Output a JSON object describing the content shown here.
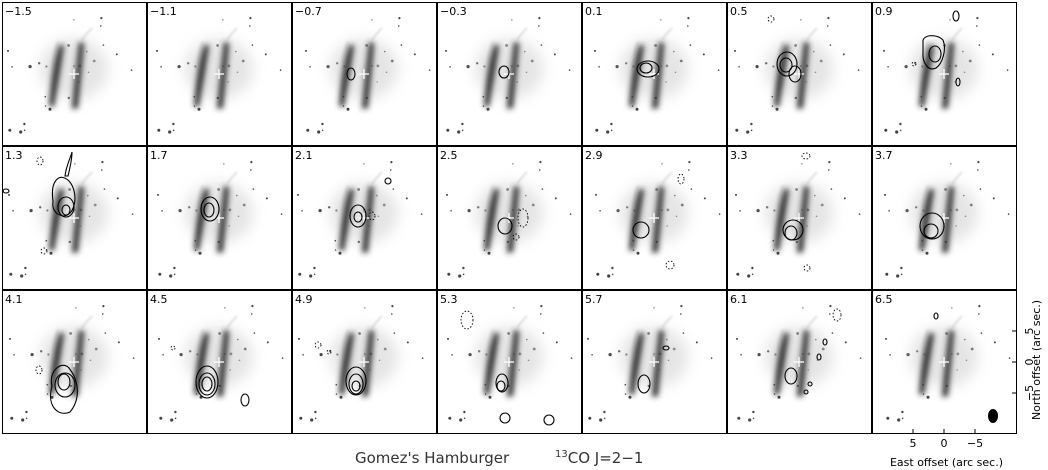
{
  "figure": {
    "source_name": "Gomez's Hamburger",
    "line_isotope": "13",
    "line_name": "CO J=2−1"
  },
  "panel_labels": [
    "−1.5",
    "−1.1",
    "−0.7",
    "−0.3",
    "0.1",
    "0.5",
    "0.9",
    "1.3",
    "1.7",
    "2.1",
    "2.5",
    "2.9",
    "3.3",
    "3.7",
    "4.1",
    "4.5",
    "4.9",
    "5.3",
    "5.7",
    "6.1",
    "6.5"
  ],
  "axes": {
    "x_label": "East offset (arc sec.)",
    "y_label": "North offset (arc sec.)",
    "x_ticks": [
      "5",
      "0",
      "−5"
    ],
    "y_ticks": [
      "5",
      "0",
      "−5"
    ]
  },
  "colors": {
    "frame": "#000000",
    "contour": "#000000",
    "nebula": "#2a2a2a",
    "background": "#ffffff"
  },
  "icons": {
    "center_marker": "cross-icon",
    "beam": "beam-ellipse-icon"
  }
}
